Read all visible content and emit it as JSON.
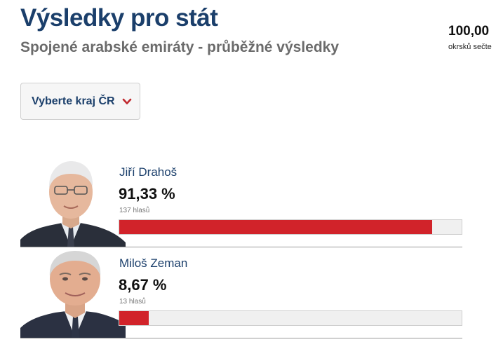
{
  "header": {
    "title": "Výsledky pro stát",
    "subtitle": "Spojené arabské emiráty - průběžné výsledky"
  },
  "counted": {
    "value": "100,00",
    "label": "okrsků sečte"
  },
  "region_select": {
    "label": "Vyberte kraj ČR",
    "icon": "chevron-down-icon"
  },
  "colors": {
    "title": "#1b3f6b",
    "bar": "#d1232a",
    "bar_track": "#f0f0f0",
    "chevron": "#c0282d"
  },
  "candidates": [
    {
      "name": "Jiří Drahoš",
      "percent_text": "91,33 %",
      "votes_text": "137 hlasů",
      "share": 0.9133
    },
    {
      "name": "Miloš Zeman",
      "percent_text": "8,67 %",
      "votes_text": "13 hlasů",
      "share": 0.0867
    }
  ]
}
